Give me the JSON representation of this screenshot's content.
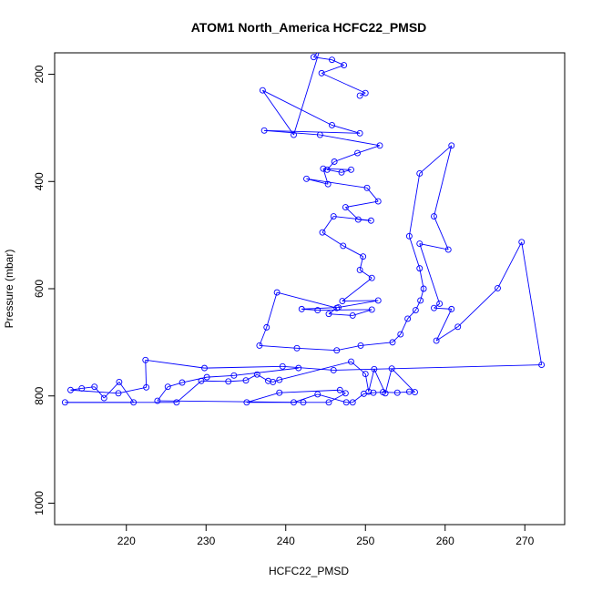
{
  "chart_data": {
    "type": "scatter",
    "title": "ATOM1 North_America HCFC22_PMSD",
    "xlabel": "HCFC22_PMSD",
    "ylabel": "Pressure (mbar)",
    "x_ticks": [
      "220",
      "230",
      "240",
      "250",
      "260",
      "270"
    ],
    "y_ticks": [
      "200",
      "400",
      "600",
      "800",
      "1000"
    ],
    "xlim": [
      211,
      275
    ],
    "ylim": [
      1040,
      160
    ],
    "y_reversed": true,
    "grid": false,
    "color": "#0000ff",
    "marker": "open-circle",
    "connected": true,
    "series": [
      {
        "points": [
          [
            249.3,
            240
          ],
          [
            250.0,
            235
          ],
          [
            244.5,
            198
          ],
          [
            247.3,
            183
          ],
          [
            245.8,
            173
          ],
          [
            243.5,
            168
          ],
          [
            244.3,
            153
          ],
          [
            241.0,
            313
          ],
          [
            237.1,
            230
          ],
          [
            245.8,
            295
          ],
          [
            249.3,
            310
          ],
          [
            237.3,
            305
          ],
          [
            244.3,
            313
          ],
          [
            251.8,
            333
          ],
          [
            249.0,
            347
          ],
          [
            246.1,
            363
          ],
          [
            245.2,
            378
          ],
          [
            247.0,
            383
          ],
          [
            248.2,
            378
          ],
          [
            244.7,
            376
          ],
          [
            245.3,
            405
          ],
          [
            242.6,
            395
          ],
          [
            250.2,
            412
          ],
          [
            251.6,
            437
          ],
          [
            247.5,
            448
          ],
          [
            249.1,
            471
          ],
          [
            250.7,
            473
          ],
          [
            246.0,
            465
          ],
          [
            244.6,
            495
          ],
          [
            247.2,
            520
          ],
          [
            249.7,
            540
          ],
          [
            249.3,
            565
          ],
          [
            250.8,
            580
          ],
          [
            247.1,
            623
          ],
          [
            251.6,
            622
          ],
          [
            246.6,
            635
          ],
          [
            242.0,
            638
          ],
          [
            244.0,
            640
          ],
          [
            250.8,
            639
          ],
          [
            248.4,
            650
          ],
          [
            245.4,
            647
          ],
          [
            246.4,
            636
          ],
          [
            238.9,
            607
          ],
          [
            237.6,
            672
          ],
          [
            236.7,
            706
          ],
          [
            241.4,
            711
          ],
          [
            246.4,
            715
          ],
          [
            249.4,
            706
          ],
          [
            253.4,
            700
          ],
          [
            254.4,
            685
          ],
          [
            255.3,
            656
          ],
          [
            256.3,
            640
          ],
          [
            256.9,
            622
          ],
          [
            257.3,
            600
          ],
          [
            256.8,
            562
          ],
          [
            255.5,
            502
          ],
          [
            256.8,
            385
          ],
          [
            260.8,
            333
          ],
          [
            258.6,
            465
          ],
          [
            260.4,
            527
          ],
          [
            256.8,
            516
          ],
          [
            259.3,
            628
          ],
          [
            258.6,
            636
          ],
          [
            260.8,
            638
          ],
          [
            258.9,
            697
          ],
          [
            261.6,
            671
          ],
          [
            266.6,
            599
          ],
          [
            269.6,
            513
          ],
          [
            272.1,
            742
          ],
          [
            246.0,
            752
          ],
          [
            239.6,
            745
          ],
          [
            229.8,
            748
          ],
          [
            222.4,
            733
          ],
          [
            222.5,
            784
          ],
          [
            219.0,
            795
          ],
          [
            213.0,
            789
          ],
          [
            214.4,
            786
          ],
          [
            216.0,
            783
          ],
          [
            217.2,
            804
          ],
          [
            219.1,
            774
          ],
          [
            220.9,
            812
          ],
          [
            212.3,
            812
          ],
          [
            226.3,
            812
          ],
          [
            229.4,
            772
          ],
          [
            232.8,
            773
          ],
          [
            235.0,
            771
          ],
          [
            236.4,
            760
          ],
          [
            237.8,
            772
          ],
          [
            238.4,
            774
          ],
          [
            239.2,
            770
          ],
          [
            248.2,
            736
          ],
          [
            250.0,
            759
          ],
          [
            250.4,
            792
          ],
          [
            251.1,
            750
          ],
          [
            252.5,
            795
          ],
          [
            253.3,
            749
          ],
          [
            256.2,
            793
          ],
          [
            255.5,
            792
          ],
          [
            254.0,
            794
          ],
          [
            252.2,
            793
          ],
          [
            251.0,
            794
          ],
          [
            249.8,
            796
          ],
          [
            248.4,
            812
          ],
          [
            247.6,
            812
          ],
          [
            244.0,
            797
          ],
          [
            241.0,
            812
          ],
          [
            235.1,
            812
          ],
          [
            239.2,
            794
          ],
          [
            246.8,
            789
          ],
          [
            247.5,
            795
          ],
          [
            245.4,
            812
          ],
          [
            242.2,
            812
          ],
          [
            223.9,
            809
          ],
          [
            225.2,
            783
          ],
          [
            227.0,
            775
          ],
          [
            230.1,
            765
          ],
          [
            233.5,
            762
          ],
          [
            241.6,
            748
          ]
        ]
      }
    ]
  }
}
